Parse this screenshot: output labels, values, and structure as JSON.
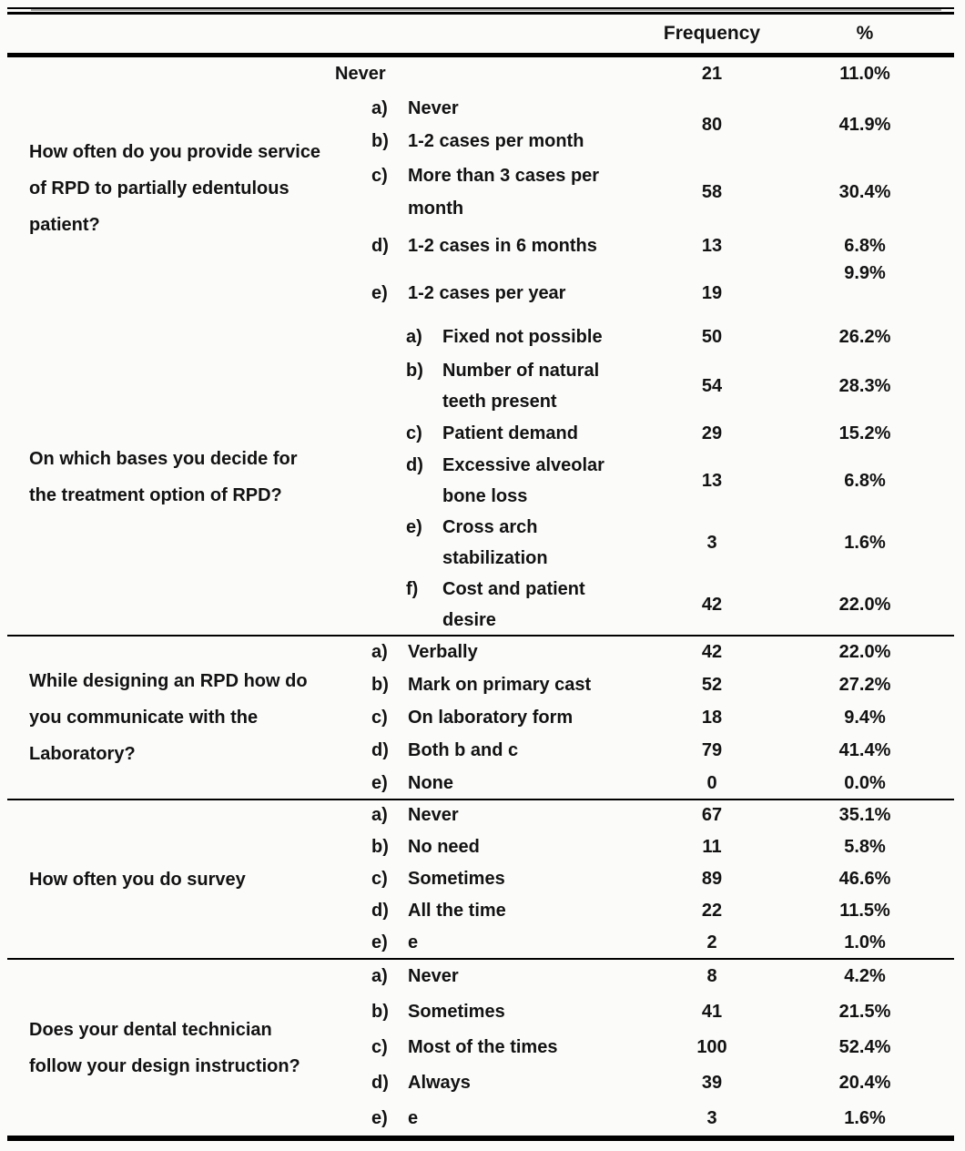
{
  "table": {
    "header": {
      "frequency": "Frequency",
      "percent": "%"
    },
    "sections": [
      {
        "question": "How often do you provide service\nof RPD to partially edentulous\npatient?",
        "rows": [
          {
            "options": [
              {
                "marker": "",
                "text": "Never"
              }
            ],
            "frequency": "21",
            "percent": "11.0%"
          },
          {
            "options": [
              {
                "marker": "a)",
                "text": "Never"
              },
              {
                "marker": "b)",
                "text": "1-2 cases per month"
              }
            ],
            "frequency": "80",
            "percent": "41.9%"
          },
          {
            "options": [
              {
                "marker": "c)",
                "text": "More than 3 cases per\nmonth"
              }
            ],
            "frequency": "58",
            "percent": "30.4%"
          },
          {
            "options": [
              {
                "marker": "d)",
                "text": "1-2 cases in 6 months"
              }
            ],
            "frequency": "13",
            "percent": "6.8%"
          },
          {
            "options": [
              {
                "marker": "e)",
                "text": "1-2 cases per year"
              }
            ],
            "frequency": "19",
            "percent": "9.9%"
          }
        ]
      },
      {
        "question": "On which bases you decide for\nthe treatment option of RPD?",
        "rows": [
          {
            "options": [
              {
                "marker": "a)",
                "text": "Fixed not possible"
              }
            ],
            "frequency": "50",
            "percent": "26.2%"
          },
          {
            "options": [
              {
                "marker": "b)",
                "text": "Number of natural\nteeth present"
              }
            ],
            "frequency": "54",
            "percent": "28.3%"
          },
          {
            "options": [
              {
                "marker": "c)",
                "text": "Patient demand"
              }
            ],
            "frequency": "29",
            "percent": "15.2%"
          },
          {
            "options": [
              {
                "marker": "d)",
                "text": "Excessive alveolar\nbone loss"
              }
            ],
            "frequency": "13",
            "percent": "6.8%"
          },
          {
            "options": [
              {
                "marker": "e)",
                "text": "Cross arch\nstabilization"
              }
            ],
            "frequency": "3",
            "percent": "1.6%"
          },
          {
            "options": [
              {
                "marker": "f)",
                "text": "Cost and patient\ndesire"
              }
            ],
            "frequency": "42",
            "percent": "22.0%"
          }
        ]
      },
      {
        "question": "While designing an RPD how do\nyou communicate with the\nLaboratory?",
        "rows": [
          {
            "options": [
              {
                "marker": "a)",
                "text": "Verbally"
              }
            ],
            "frequency": "42",
            "percent": "22.0%"
          },
          {
            "options": [
              {
                "marker": "b)",
                "text": "Mark on primary cast"
              }
            ],
            "frequency": "52",
            "percent": "27.2%"
          },
          {
            "options": [
              {
                "marker": "c)",
                "text": "On laboratory form"
              }
            ],
            "frequency": "18",
            "percent": "9.4%"
          },
          {
            "options": [
              {
                "marker": "d)",
                "text": "Both b and c"
              }
            ],
            "frequency": "79",
            "percent": "41.4%"
          },
          {
            "options": [
              {
                "marker": "e)",
                "text": "None"
              }
            ],
            "frequency": "0",
            "percent": "0.0%"
          }
        ]
      },
      {
        "question": "How often you do survey",
        "rows": [
          {
            "options": [
              {
                "marker": "a)",
                "text": "Never"
              }
            ],
            "frequency": "67",
            "percent": "35.1%"
          },
          {
            "options": [
              {
                "marker": "b)",
                "text": "No need"
              }
            ],
            "frequency": "11",
            "percent": "5.8%"
          },
          {
            "options": [
              {
                "marker": "c)",
                "text": "Sometimes"
              }
            ],
            "frequency": "89",
            "percent": "46.6%"
          },
          {
            "options": [
              {
                "marker": "d)",
                "text": "All the time"
              }
            ],
            "frequency": "22",
            "percent": "11.5%"
          },
          {
            "options": [
              {
                "marker": "e)",
                "text": "e"
              }
            ],
            "frequency": "2",
            "percent": "1.0%"
          }
        ]
      },
      {
        "question": "Does your dental technician\nfollow your design instruction?",
        "rows": [
          {
            "options": [
              {
                "marker": "a)",
                "text": "Never"
              }
            ],
            "frequency": "8",
            "percent": "4.2%"
          },
          {
            "options": [
              {
                "marker": "b)",
                "text": "Sometimes"
              }
            ],
            "frequency": "41",
            "percent": "21.5%"
          },
          {
            "options": [
              {
                "marker": "c)",
                "text": "Most of the times"
              }
            ],
            "frequency": "100",
            "percent": "52.4%"
          },
          {
            "options": [
              {
                "marker": "d)",
                "text": "Always"
              }
            ],
            "frequency": "39",
            "percent": "20.4%"
          },
          {
            "options": [
              {
                "marker": "e)",
                "text": "e"
              }
            ],
            "frequency": "3",
            "percent": "1.6%"
          }
        ]
      }
    ]
  }
}
